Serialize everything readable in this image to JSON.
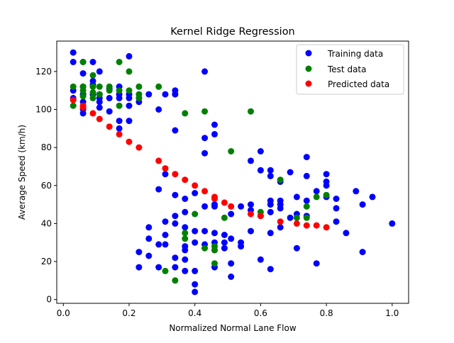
{
  "chart_data": {
    "type": "scatter",
    "title": "Kernel Ridge Regression",
    "xlabel": "Normalized Normal Lane Flow",
    "ylabel": "Average Speed (km/h)",
    "xlim": [
      -0.02,
      1.05
    ],
    "ylim": [
      -2,
      136
    ],
    "x_ticks": [
      0.0,
      0.2,
      0.4,
      0.6,
      0.8,
      1.0
    ],
    "x_tick_labels": [
      "0.0",
      "0.2",
      "0.4",
      "0.6",
      "0.8",
      "1.0"
    ],
    "y_ticks": [
      0,
      20,
      40,
      60,
      80,
      100,
      120
    ],
    "y_tick_labels": [
      "0",
      "20",
      "40",
      "60",
      "80",
      "100",
      "120"
    ],
    "grid": false,
    "legend_position": "top-right",
    "series": [
      {
        "name": "Training data",
        "color": "#0000ff",
        "points": [
          [
            0.03,
            130
          ],
          [
            0.03,
            125
          ],
          [
            0.03,
            110
          ],
          [
            0.03,
            106
          ],
          [
            0.06,
            98
          ],
          [
            0.06,
            100
          ],
          [
            0.06,
            104
          ],
          [
            0.06,
            108
          ],
          [
            0.06,
            112
          ],
          [
            0.06,
            119
          ],
          [
            0.06,
            125
          ],
          [
            0.09,
            125
          ],
          [
            0.09,
            108
          ],
          [
            0.09,
            113
          ],
          [
            0.09,
            115
          ],
          [
            0.11,
            120
          ],
          [
            0.11,
            108
          ],
          [
            0.11,
            104
          ],
          [
            0.11,
            101
          ],
          [
            0.11,
            106
          ],
          [
            0.14,
            111
          ],
          [
            0.14,
            106
          ],
          [
            0.14,
            99
          ],
          [
            0.17,
            112
          ],
          [
            0.17,
            108
          ],
          [
            0.17,
            106
          ],
          [
            0.17,
            94
          ],
          [
            0.17,
            90
          ],
          [
            0.2,
            128
          ],
          [
            0.2,
            108
          ],
          [
            0.2,
            106
          ],
          [
            0.2,
            102
          ],
          [
            0.2,
            94
          ],
          [
            0.23,
            106
          ],
          [
            0.23,
            104
          ],
          [
            0.26,
            108
          ],
          [
            0.29,
            100
          ],
          [
            0.31,
            108
          ],
          [
            0.34,
            110
          ],
          [
            0.34,
            108
          ],
          [
            0.34,
            89
          ],
          [
            0.43,
            120
          ],
          [
            0.43,
            85
          ],
          [
            0.43,
            77
          ],
          [
            0.46,
            92
          ],
          [
            0.46,
            87
          ],
          [
            0.31,
            66
          ],
          [
            0.29,
            58
          ],
          [
            0.34,
            55
          ],
          [
            0.37,
            53
          ],
          [
            0.37,
            46
          ],
          [
            0.4,
            56
          ],
          [
            0.43,
            49
          ],
          [
            0.46,
            50
          ],
          [
            0.46,
            49
          ],
          [
            0.26,
            38
          ],
          [
            0.26,
            32
          ],
          [
            0.26,
            23
          ],
          [
            0.23,
            25
          ],
          [
            0.23,
            17
          ],
          [
            0.29,
            29
          ],
          [
            0.29,
            17
          ],
          [
            0.31,
            41
          ],
          [
            0.31,
            34
          ],
          [
            0.31,
            29
          ],
          [
            0.34,
            44
          ],
          [
            0.34,
            40
          ],
          [
            0.34,
            22
          ],
          [
            0.34,
            17
          ],
          [
            0.37,
            38
          ],
          [
            0.37,
            28
          ],
          [
            0.37,
            26
          ],
          [
            0.37,
            21
          ],
          [
            0.37,
            15
          ],
          [
            0.4,
            36
          ],
          [
            0.4,
            30
          ],
          [
            0.4,
            15
          ],
          [
            0.4,
            8
          ],
          [
            0.4,
            4
          ],
          [
            0.43,
            36
          ],
          [
            0.43,
            29
          ],
          [
            0.46,
            35
          ],
          [
            0.46,
            30
          ],
          [
            0.46,
            26
          ],
          [
            0.46,
            17
          ],
          [
            0.49,
            34
          ],
          [
            0.49,
            30
          ],
          [
            0.49,
            27
          ],
          [
            0.51,
            45
          ],
          [
            0.51,
            32
          ],
          [
            0.51,
            19
          ],
          [
            0.51,
            12
          ],
          [
            0.54,
            49
          ],
          [
            0.54,
            30
          ],
          [
            0.54,
            28
          ],
          [
            0.57,
            50
          ],
          [
            0.57,
            47
          ],
          [
            0.57,
            36
          ],
          [
            0.57,
            73
          ],
          [
            0.6,
            78
          ],
          [
            0.6,
            68
          ],
          [
            0.6,
            44
          ],
          [
            0.6,
            21
          ],
          [
            0.63,
            68
          ],
          [
            0.63,
            65
          ],
          [
            0.63,
            52
          ],
          [
            0.63,
            50
          ],
          [
            0.63,
            46
          ],
          [
            0.63,
            35
          ],
          [
            0.63,
            16
          ],
          [
            0.66,
            62
          ],
          [
            0.66,
            52
          ],
          [
            0.66,
            50
          ],
          [
            0.66,
            48
          ],
          [
            0.66,
            38
          ],
          [
            0.69,
            67
          ],
          [
            0.69,
            43
          ],
          [
            0.71,
            54
          ],
          [
            0.71,
            45
          ],
          [
            0.71,
            27
          ],
          [
            0.74,
            75
          ],
          [
            0.74,
            65
          ],
          [
            0.74,
            52
          ],
          [
            0.74,
            44
          ],
          [
            0.77,
            57
          ],
          [
            0.77,
            19
          ],
          [
            0.8,
            66
          ],
          [
            0.8,
            62
          ],
          [
            0.8,
            60
          ],
          [
            0.8,
            54
          ],
          [
            0.83,
            53
          ],
          [
            0.83,
            48
          ],
          [
            0.83,
            41
          ],
          [
            0.86,
            35
          ],
          [
            0.89,
            57
          ],
          [
            0.91,
            50
          ],
          [
            0.91,
            25
          ],
          [
            0.94,
            54
          ],
          [
            1.0,
            40
          ]
        ]
      },
      {
        "name": "Test data",
        "color": "#008000",
        "points": [
          [
            0.03,
            112
          ],
          [
            0.03,
            102
          ],
          [
            0.06,
            125
          ],
          [
            0.06,
            112
          ],
          [
            0.06,
            110
          ],
          [
            0.06,
            107
          ],
          [
            0.09,
            118
          ],
          [
            0.09,
            112
          ],
          [
            0.09,
            109
          ],
          [
            0.09,
            106
          ],
          [
            0.11,
            112
          ],
          [
            0.11,
            108
          ],
          [
            0.14,
            112
          ],
          [
            0.14,
            110
          ],
          [
            0.17,
            125
          ],
          [
            0.17,
            110
          ],
          [
            0.17,
            102
          ],
          [
            0.2,
            120
          ],
          [
            0.2,
            110
          ],
          [
            0.23,
            112
          ],
          [
            0.23,
            108
          ],
          [
            0.23,
            106
          ],
          [
            0.29,
            112
          ],
          [
            0.37,
            98
          ],
          [
            0.43,
            99
          ],
          [
            0.57,
            99
          ],
          [
            0.51,
            78
          ],
          [
            0.66,
            63
          ],
          [
            0.6,
            46
          ],
          [
            0.4,
            45
          ],
          [
            0.49,
            43
          ],
          [
            0.37,
            35
          ],
          [
            0.37,
            32
          ],
          [
            0.43,
            27
          ],
          [
            0.46,
            28
          ],
          [
            0.46,
            26
          ],
          [
            0.46,
            19
          ],
          [
            0.31,
            15
          ],
          [
            0.34,
            10
          ],
          [
            0.71,
            43
          ],
          [
            0.74,
            49
          ],
          [
            0.74,
            43
          ],
          [
            0.77,
            54
          ],
          [
            0.8,
            55
          ]
        ]
      },
      {
        "name": "Predicted data",
        "color": "#ff0000",
        "points": [
          [
            0.03,
            105
          ],
          [
            0.06,
            102
          ],
          [
            0.06,
            101
          ],
          [
            0.09,
            98
          ],
          [
            0.11,
            95
          ],
          [
            0.14,
            91
          ],
          [
            0.17,
            87
          ],
          [
            0.2,
            83
          ],
          [
            0.23,
            80
          ],
          [
            0.29,
            73
          ],
          [
            0.31,
            69
          ],
          [
            0.34,
            66
          ],
          [
            0.37,
            63
          ],
          [
            0.4,
            60
          ],
          [
            0.43,
            57
          ],
          [
            0.46,
            54
          ],
          [
            0.46,
            53
          ],
          [
            0.49,
            51
          ],
          [
            0.51,
            49
          ],
          [
            0.57,
            45
          ],
          [
            0.6,
            44
          ],
          [
            0.66,
            41
          ],
          [
            0.71,
            40
          ],
          [
            0.74,
            39
          ],
          [
            0.77,
            39
          ],
          [
            0.8,
            38
          ]
        ]
      }
    ]
  }
}
